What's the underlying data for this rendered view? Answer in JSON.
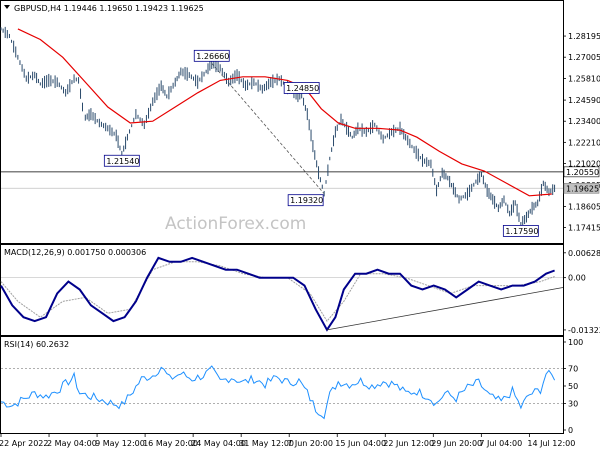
{
  "header": {
    "main": "GBPUSD,H4  1.19446  1.19650  1.19423  1.19625",
    "macd": "MACD(12,26,9) 0.001750 0.000306",
    "rsi": "RSI(14) 60.2632"
  },
  "watermark": "ActionForex.com",
  "colors": {
    "price": "#2a4a6b",
    "ma": "#e60000",
    "macd_line": "#00008b",
    "macd_signal": "#a0a0a0",
    "rsi": "#1e90ff",
    "frame": "#000000",
    "level_line": "#000000",
    "trend": "#333333",
    "current_box": "#c0c0c0"
  },
  "chart_data": [
    {
      "type": "line",
      "panel": "price",
      "ylim": [
        1.166,
        1.3
      ],
      "yticks": [
        "1.28195",
        "1.27005",
        "1.25810",
        "1.24590",
        "1.23400",
        "1.22210",
        "1.21020",
        "1.19805",
        "1.18605",
        "1.17415"
      ],
      "xticks": [
        "22 Apr 2022",
        "2 May 04:00",
        "9 May 12:00",
        "16 May 20:00",
        "24 May 04:00",
        "31 May 12:00",
        "7 Jun 20:00",
        "15 Jun 04:00",
        "22 Jun 12:00",
        "29 Jun 20:00",
        "7 Jul 04:00",
        "14 Jul 12:00"
      ],
      "x_range": [
        0,
        100
      ],
      "series": [
        {
          "values": [
            [
              0,
              1.286
            ],
            [
              1.5,
              1.282
            ],
            [
              3,
              1.27
            ],
            [
              4.5,
              1.258
            ],
            [
              6,
              1.26
            ],
            [
              7,
              1.255
            ],
            [
              8.5,
              1.257
            ],
            [
              10,
              1.256
            ],
            [
              11.5,
              1.25
            ],
            [
              13,
              1.258
            ],
            [
              13.8,
              1.257
            ],
            [
              14.5,
              1.242
            ],
            [
              15,
              1.236
            ],
            [
              16,
              1.238
            ],
            [
              17.5,
              1.233
            ],
            [
              19,
              1.23
            ],
            [
              20.5,
              1.226
            ],
            [
              21.5,
              1.2154
            ],
            [
              22.5,
              1.225
            ],
            [
              24,
              1.238
            ],
            [
              25.5,
              1.232
            ],
            [
              27,
              1.245
            ],
            [
              28.5,
              1.254
            ],
            [
              29.5,
              1.248
            ],
            [
              31,
              1.256
            ],
            [
              32,
              1.262
            ],
            [
              33.5,
              1.26
            ],
            [
              35,
              1.256
            ],
            [
              36.5,
              1.262
            ],
            [
              37.5,
              1.2666
            ],
            [
              39,
              1.264
            ],
            [
              40.5,
              1.256
            ],
            [
              42,
              1.26
            ],
            [
              43.5,
              1.254
            ],
            [
              45,
              1.256
            ],
            [
              46.5,
              1.252
            ],
            [
              48,
              1.256
            ],
            [
              49.5,
              1.258
            ],
            [
              51,
              1.253
            ],
            [
              52.5,
              1.248
            ],
            [
              53.5,
              1.2485
            ],
            [
              54.5,
              1.238
            ],
            [
              55.5,
              1.22
            ],
            [
              56.5,
              1.205
            ],
            [
              57.5,
              1.1932
            ],
            [
              58.5,
              1.213
            ],
            [
              59.5,
              1.228
            ],
            [
              60.5,
              1.235
            ],
            [
              61.5,
              1.23
            ],
            [
              62.5,
              1.225
            ],
            [
              63.5,
              1.23
            ],
            [
              65,
              1.228
            ],
            [
              66.5,
              1.232
            ],
            [
              68,
              1.224
            ],
            [
              69.5,
              1.228
            ],
            [
              71,
              1.23
            ],
            [
              72,
              1.225
            ],
            [
              73.5,
              1.218
            ],
            [
              75,
              1.212
            ],
            [
              76.5,
              1.21
            ],
            [
              77.5,
              1.195
            ],
            [
              78.5,
              1.205
            ],
            [
              79.5,
              1.202
            ],
            [
              80.5,
              1.196
            ],
            [
              81.5,
              1.19
            ],
            [
              83,
              1.193
            ],
            [
              84.5,
              1.2
            ],
            [
              85.5,
              1.204
            ],
            [
              86.5,
              1.195
            ],
            [
              87.5,
              1.19
            ],
            [
              88.5,
              1.185
            ],
            [
              89.5,
              1.19
            ],
            [
              90.5,
              1.182
            ],
            [
              91.5,
              1.188
            ],
            [
              92.5,
              1.1759
            ],
            [
              93.5,
              1.18
            ],
            [
              94.5,
              1.185
            ],
            [
              95.5,
              1.188
            ],
            [
              96.5,
              1.199
            ],
            [
              97.5,
              1.194
            ],
            [
              98.5,
              1.1962
            ]
          ]
        },
        {
          "values": [
            [
              3,
              1.286
            ],
            [
              7,
              1.28
            ],
            [
              11,
              1.27
            ],
            [
              15,
              1.256
            ],
            [
              19,
              1.242
            ],
            [
              23,
              1.233
            ],
            [
              27,
              1.234
            ],
            [
              31,
              1.242
            ],
            [
              35,
              1.25
            ],
            [
              39,
              1.257
            ],
            [
              43,
              1.259
            ],
            [
              47,
              1.259
            ],
            [
              51,
              1.257
            ],
            [
              54,
              1.253
            ],
            [
              57,
              1.241
            ],
            [
              60,
              1.233
            ],
            [
              63,
              1.23
            ],
            [
              67,
              1.23
            ],
            [
              71,
              1.229
            ],
            [
              74,
              1.225
            ],
            [
              78,
              1.217
            ],
            [
              82,
              1.21
            ],
            [
              86,
              1.206
            ],
            [
              90,
              1.199
            ],
            [
              94,
              1.192
            ],
            [
              98,
              1.193
            ]
          ]
        }
      ],
      "annotations": [
        {
          "text": "1.26660",
          "x": 37.5,
          "y": 1.2666
        },
        {
          "text": "1.21540",
          "x": 21.5,
          "y": 1.2154
        },
        {
          "text": "1.24850",
          "x": 53.5,
          "y": 1.2485
        },
        {
          "text": "1.19320",
          "x": 57.5,
          "y": 1.1932
        },
        {
          "text": "1.17590",
          "x": 92.5,
          "y": 1.1759
        }
      ],
      "horizontal_lines": [
        1.2055
      ],
      "current_price": {
        "value": 1.19625,
        "text": "1.19625"
      },
      "level_labels": [
        {
          "value": 1.2055,
          "text": "1.20550"
        }
      ],
      "trend_lines": [
        [
          [
            37.5,
            1.2666
          ],
          [
            57.5,
            1.1932
          ]
        ]
      ]
    },
    {
      "type": "line",
      "panel": "macd",
      "title": "MACD(12,26,9) 0.001750 0.000306",
      "ylim": [
        -0.014,
        0.0075
      ],
      "yticks": [
        "0.006285",
        "0.00",
        "-0.013223"
      ],
      "zero_line": 0,
      "series": [
        {
          "values": [
            [
              0,
              -0.002
            ],
            [
              2,
              -0.007
            ],
            [
              4,
              -0.01
            ],
            [
              6,
              -0.011
            ],
            [
              8,
              -0.01
            ],
            [
              10,
              -0.004
            ],
            [
              12,
              -0.001
            ],
            [
              14,
              -0.003
            ],
            [
              16,
              -0.007
            ],
            [
              18,
              -0.009
            ],
            [
              20,
              -0.011
            ],
            [
              22,
              -0.01
            ],
            [
              24,
              -0.006
            ],
            [
              26,
              0.0
            ],
            [
              28,
              0.005
            ],
            [
              30,
              0.004
            ],
            [
              32,
              0.004
            ],
            [
              34,
              0.005
            ],
            [
              36,
              0.004
            ],
            [
              38,
              0.003
            ],
            [
              40,
              0.002
            ],
            [
              42,
              0.002
            ],
            [
              44,
              0.001
            ],
            [
              46,
              0.0
            ],
            [
              48,
              0.0
            ],
            [
              50,
              0.0
            ],
            [
              52,
              0.0
            ],
            [
              54,
              -0.002
            ],
            [
              56,
              -0.008
            ],
            [
              58,
              -0.0132
            ],
            [
              59.5,
              -0.01
            ],
            [
              61,
              -0.003
            ],
            [
              63,
              0.001
            ],
            [
              65,
              0.001
            ],
            [
              67,
              0.002
            ],
            [
              69,
              0.001
            ],
            [
              71,
              0.001
            ],
            [
              73,
              -0.002
            ],
            [
              75,
              -0.003
            ],
            [
              77,
              -0.002
            ],
            [
              79,
              -0.003
            ],
            [
              81,
              -0.005
            ],
            [
              83,
              -0.003
            ],
            [
              85,
              -0.001
            ],
            [
              87,
              -0.002
            ],
            [
              89,
              -0.003
            ],
            [
              91,
              -0.002
            ],
            [
              93,
              -0.002
            ],
            [
              95,
              -0.001
            ],
            [
              97,
              0.001
            ],
            [
              98.5,
              0.0018
            ]
          ]
        },
        {
          "values": [
            [
              0,
              -0.001
            ],
            [
              3,
              -0.006
            ],
            [
              7,
              -0.01
            ],
            [
              11,
              -0.006
            ],
            [
              15,
              -0.005
            ],
            [
              19,
              -0.009
            ],
            [
              23,
              -0.008
            ],
            [
              27,
              0.002
            ],
            [
              31,
              0.004
            ],
            [
              35,
              0.004
            ],
            [
              39,
              0.003
            ],
            [
              43,
              0.001
            ],
            [
              47,
              0.0
            ],
            [
              51,
              0.0
            ],
            [
              55,
              -0.004
            ],
            [
              58,
              -0.011
            ],
            [
              61,
              -0.006
            ],
            [
              64,
              0.001
            ],
            [
              68,
              0.001
            ],
            [
              72,
              0.0
            ],
            [
              76,
              -0.002
            ],
            [
              80,
              -0.004
            ],
            [
              84,
              -0.002
            ],
            [
              88,
              -0.002
            ],
            [
              92,
              -0.002
            ],
            [
              96,
              -0.001
            ],
            [
              98.5,
              0.0003
            ]
          ]
        }
      ],
      "trend_lines": [
        [
          [
            58,
            -0.0132
          ],
          [
            100,
            -0.0025
          ]
        ]
      ]
    },
    {
      "type": "line",
      "panel": "rsi",
      "title": "RSI(14) 60.2632",
      "ylim": [
        0,
        100
      ],
      "yticks": [
        "100",
        "70",
        "50",
        "30",
        "0"
      ],
      "dotted_levels": [
        70,
        30
      ],
      "series": [
        {
          "values": [
            [
              0,
              32
            ],
            [
              2,
              28
            ],
            [
              4,
              35
            ],
            [
              6,
              42
            ],
            [
              8,
              38
            ],
            [
              10,
              45
            ],
            [
              12,
              55
            ],
            [
              13,
              60
            ],
            [
              14,
              42
            ],
            [
              16,
              38
            ],
            [
              18,
              34
            ],
            [
              20,
              30
            ],
            [
              21.5,
              28
            ],
            [
              23,
              40
            ],
            [
              25,
              58
            ],
            [
              27,
              62
            ],
            [
              28.5,
              72
            ],
            [
              30,
              58
            ],
            [
              32,
              64
            ],
            [
              34,
              58
            ],
            [
              36,
              62
            ],
            [
              37.5,
              68
            ],
            [
              39,
              55
            ],
            [
              41,
              60
            ],
            [
              43,
              54
            ],
            [
              45,
              58
            ],
            [
              47,
              52
            ],
            [
              49,
              60
            ],
            [
              51,
              54
            ],
            [
              53,
              56
            ],
            [
              54.5,
              42
            ],
            [
              56,
              24
            ],
            [
              57.5,
              18
            ],
            [
              58.5,
              40
            ],
            [
              60,
              55
            ],
            [
              62,
              52
            ],
            [
              64,
              56
            ],
            [
              66,
              50
            ],
            [
              68,
              55
            ],
            [
              70,
              52
            ],
            [
              72,
              42
            ],
            [
              74,
              44
            ],
            [
              76,
              38
            ],
            [
              77.5,
              30
            ],
            [
              79,
              42
            ],
            [
              81,
              36
            ],
            [
              83,
              48
            ],
            [
              85,
              54
            ],
            [
              87,
              38
            ],
            [
              89,
              32
            ],
            [
              91,
              44
            ],
            [
              92.5,
              26
            ],
            [
              94,
              40
            ],
            [
              96,
              46
            ],
            [
              97,
              64
            ],
            [
              98.5,
              60
            ]
          ]
        }
      ]
    }
  ]
}
